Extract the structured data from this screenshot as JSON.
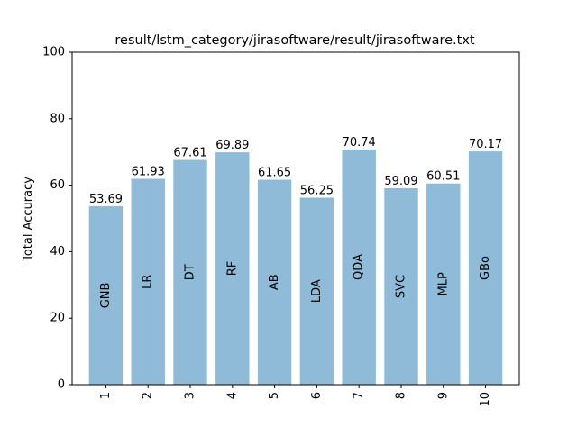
{
  "chart_data": {
    "type": "bar",
    "title": "result/lstm_category/jirasoftware/result/jirasoftware.txt",
    "xlabel": "",
    "ylabel": "Total Accuracy",
    "ylim": [
      0,
      100
    ],
    "yticks": [
      0,
      20,
      40,
      60,
      80,
      100
    ],
    "categories": [
      "1",
      "2",
      "3",
      "4",
      "5",
      "6",
      "7",
      "8",
      "9",
      "10"
    ],
    "values": [
      53.69,
      61.93,
      67.61,
      69.89,
      61.65,
      56.25,
      70.74,
      59.09,
      60.51,
      70.17
    ],
    "value_labels": [
      "53.69",
      "61.93",
      "67.61",
      "69.89",
      "61.65",
      "56.25",
      "70.74",
      "59.09",
      "60.51",
      "70.17"
    ],
    "bar_labels": [
      "GNB",
      "LR",
      "DT",
      "RF",
      "AB",
      "LDA",
      "QDA",
      "SVC",
      "MLP",
      "GBo"
    ],
    "bar_color": "#8fbbd9",
    "grid": false,
    "legend": "none"
  }
}
